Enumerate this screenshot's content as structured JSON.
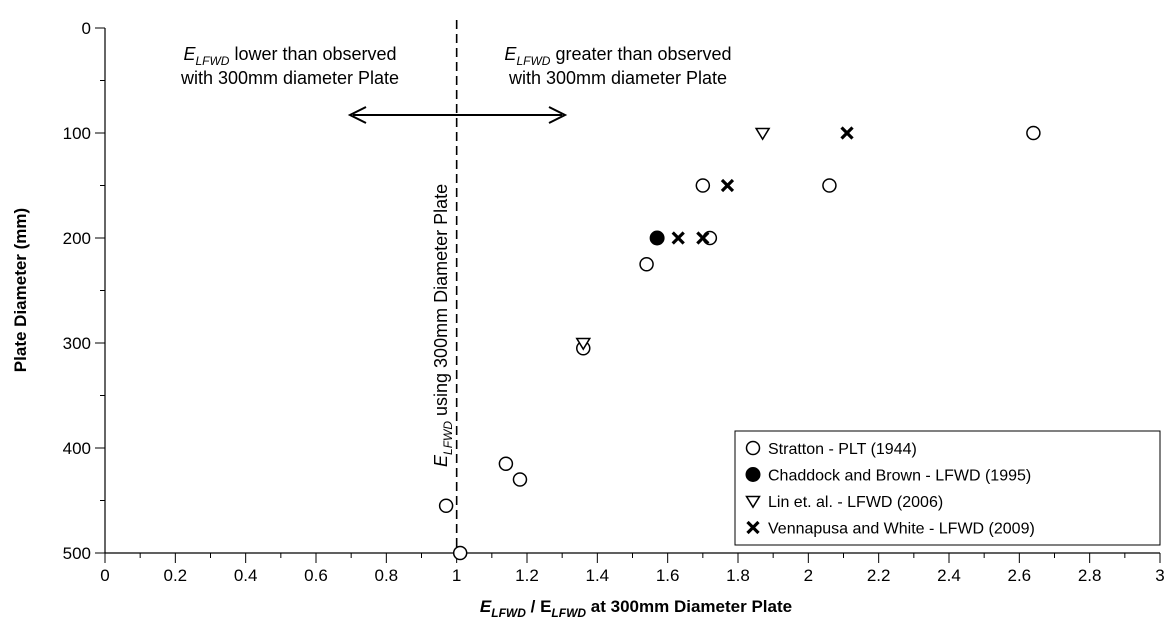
{
  "chart_data": {
    "type": "scatter",
    "xlabel": {
      "main": "E",
      "sub": "LFWD",
      "mid": " / E",
      "sub2": "LFWD",
      "tail": " at 300mm Diameter Plate"
    },
    "ylabel": "Plate Diameter (mm)",
    "xlim": [
      0,
      3
    ],
    "ylim": [
      0,
      500
    ],
    "y_inverted": true,
    "x_ticks": [
      "0",
      "0.2",
      "0.4",
      "0.6",
      "0.8",
      "1",
      "1.2",
      "1.4",
      "1.6",
      "1.8",
      "2",
      "2.2",
      "2.4",
      "2.6",
      "2.8",
      "3"
    ],
    "y_ticks": [
      "0",
      "100",
      "200",
      "300",
      "400",
      "500"
    ],
    "reference_line": {
      "x": 1,
      "style": "dashed"
    },
    "annotations": {
      "left": {
        "e": "E",
        "sub": "LFWD",
        "line1_rest": " lower than observed",
        "line2": "with 300mm diameter Plate"
      },
      "right": {
        "e": "E",
        "sub": "LFWD",
        "line1_rest": " greater than observed",
        "line2": "with 300mm diameter Plate"
      },
      "vertical": {
        "e": "E",
        "sub": "LFWD",
        "rest": " using 300mm Diameter Plate"
      }
    },
    "legend_position": "bottom-right",
    "series": [
      {
        "name": "Stratton - PLT (1944)",
        "marker": "open-circle",
        "points": [
          [
            0.97,
            455
          ],
          [
            1.01,
            500
          ],
          [
            1.14,
            415
          ],
          [
            1.18,
            430
          ],
          [
            1.36,
            305
          ],
          [
            1.54,
            225
          ],
          [
            1.7,
            150
          ],
          [
            1.72,
            200
          ],
          [
            2.06,
            150
          ],
          [
            2.64,
            100
          ]
        ]
      },
      {
        "name": "Chaddock and Brown - LFWD (1995)",
        "marker": "filled-circle",
        "points": [
          [
            1.57,
            200
          ]
        ]
      },
      {
        "name": "Lin et. al. - LFWD (2006)",
        "marker": "open-triangle-down",
        "points": [
          [
            1.36,
            300
          ],
          [
            1.87,
            100
          ]
        ]
      },
      {
        "name": "Vennapusa and White - LFWD (2009)",
        "marker": "x",
        "points": [
          [
            1.63,
            200
          ],
          [
            1.7,
            200
          ],
          [
            1.77,
            150
          ],
          [
            2.11,
            100
          ]
        ]
      }
    ]
  }
}
